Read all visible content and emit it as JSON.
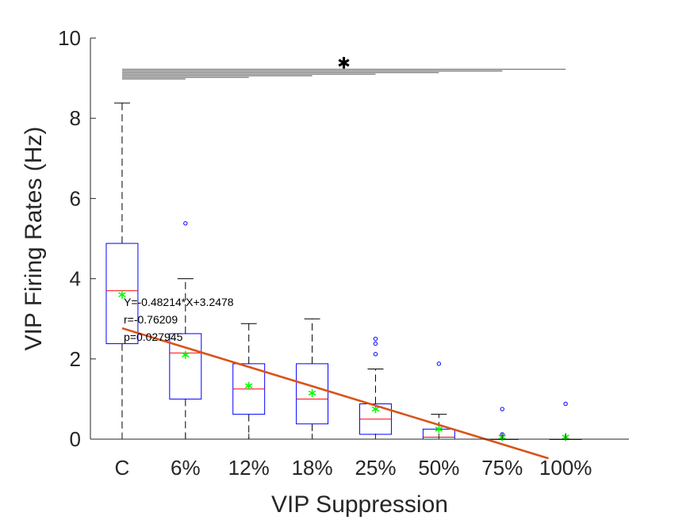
{
  "chart_data": {
    "type": "box",
    "xlabel": "VIP Suppression",
    "ylabel": "VIP Firing Rates (Hz)",
    "ylim": [
      0,
      10
    ],
    "yticks": [
      0,
      2,
      4,
      6,
      8,
      10
    ],
    "categories": [
      "C",
      "6%",
      "12%",
      "18%",
      "25%",
      "50%",
      "75%",
      "100%"
    ],
    "boxes": [
      {
        "whisker_low": 0,
        "q1": 2.38,
        "median": 3.7,
        "q3": 4.88,
        "whisker_high": 8.38,
        "mean": 3.6,
        "outliers": []
      },
      {
        "whisker_low": 0,
        "q1": 1.0,
        "median": 2.15,
        "q3": 2.63,
        "whisker_high": 4.0,
        "mean": 2.1,
        "outliers": [
          5.38
        ]
      },
      {
        "whisker_low": 0,
        "q1": 0.62,
        "median": 1.25,
        "q3": 1.88,
        "whisker_high": 2.88,
        "mean": 1.33,
        "outliers": []
      },
      {
        "whisker_low": 0,
        "q1": 0.38,
        "median": 1.0,
        "q3": 1.88,
        "whisker_high": 3.0,
        "mean": 1.15,
        "outliers": []
      },
      {
        "whisker_low": 0,
        "q1": 0.12,
        "median": 0.5,
        "q3": 0.88,
        "whisker_high": 1.75,
        "mean": 0.75,
        "outliers": [
          2.12,
          2.38,
          2.5
        ]
      },
      {
        "whisker_low": 0,
        "q1": 0.0,
        "median": 0.05,
        "q3": 0.25,
        "whisker_high": 0.62,
        "mean": 0.25,
        "outliers": [
          1.88
        ]
      },
      {
        "whisker_low": 0,
        "q1": 0.0,
        "median": 0.0,
        "q3": 0.0,
        "whisker_high": 0.0,
        "mean": 0.05,
        "outliers": [
          0.12,
          0.75
        ]
      },
      {
        "whisker_low": 0,
        "q1": 0.0,
        "median": 0.0,
        "q3": 0.0,
        "whisker_high": 0.0,
        "mean": 0.05,
        "outliers": [
          0.88
        ]
      }
    ],
    "regression": {
      "x_from": 1,
      "x_to": 7.73,
      "slope": -0.48214,
      "intercept": 3.2478,
      "color": "#d95319",
      "label_lines": [
        "Y=-0.48214*X+3.2478",
        "r=-0.76209",
        "p=0.027945"
      ]
    },
    "significance": {
      "marker": "✱",
      "y_values": [
        9.22,
        9.18,
        9.14,
        9.1,
        9.06,
        9.02,
        8.98
      ],
      "x_from": 1,
      "x_to": [
        8,
        7,
        6,
        5,
        4,
        3,
        2
      ]
    },
    "colors": {
      "box": "#0000ff",
      "median": "#ff0000",
      "whisker": "#000000",
      "mean": "#00ff00",
      "outlier": "#0000ff",
      "significance": "#808080",
      "axis": "#262626"
    }
  }
}
